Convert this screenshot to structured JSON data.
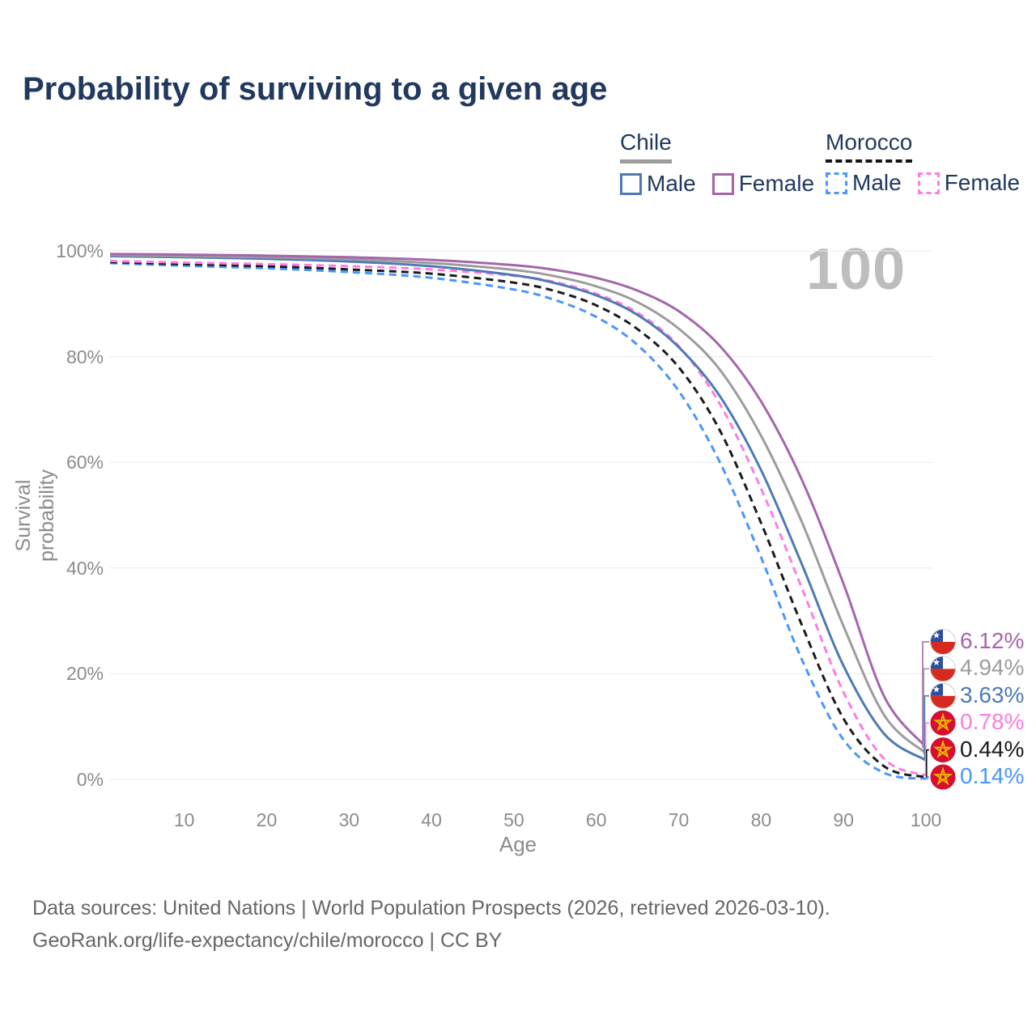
{
  "title": "Probability of surviving to a given age",
  "watermark": "100",
  "legend": {
    "groups": [
      {
        "label": "Chile",
        "line_style": "solid",
        "underline_color": "#9c9c9c",
        "items": [
          {
            "label": "Male",
            "color": "#4d7ab5",
            "dashed": false
          },
          {
            "label": "Female",
            "color": "#a565ab",
            "dashed": false
          }
        ]
      },
      {
        "label": "Morocco",
        "line_style": "dashed",
        "underline_color": "#141414",
        "items": [
          {
            "label": "Male",
            "color": "#4896ff",
            "dashed": true
          },
          {
            "label": "Female",
            "color": "#ff7ce0",
            "dashed": true
          }
        ]
      }
    ]
  },
  "chart_data": {
    "type": "line",
    "title": "Probability of surviving to a given age",
    "xlabel": "Age",
    "ylabel": "Survival probability",
    "xlim": [
      1,
      100
    ],
    "ylim": [
      0,
      100
    ],
    "grid": "horizontal",
    "legend_position": "top-right",
    "x_ticks": [
      {
        "value": 10,
        "label": "10"
      },
      {
        "value": 20,
        "label": "20"
      },
      {
        "value": 30,
        "label": "30"
      },
      {
        "value": 40,
        "label": "40"
      },
      {
        "value": 50,
        "label": "50"
      },
      {
        "value": 60,
        "label": "60"
      },
      {
        "value": 70,
        "label": "70"
      },
      {
        "value": 80,
        "label": "80"
      },
      {
        "value": 90,
        "label": "90"
      },
      {
        "value": 100,
        "label": "100"
      }
    ],
    "y_ticks": [
      {
        "value": 0,
        "label": "0%"
      },
      {
        "value": 20,
        "label": "20%"
      },
      {
        "value": 40,
        "label": "40%"
      },
      {
        "value": 60,
        "label": "60%"
      },
      {
        "value": 80,
        "label": "80%"
      },
      {
        "value": 100,
        "label": "100%"
      }
    ],
    "x": [
      1,
      10,
      20,
      30,
      40,
      50,
      55,
      60,
      65,
      70,
      75,
      80,
      85,
      90,
      95,
      100
    ],
    "series": [
      {
        "id": "chile-female",
        "country": "Chile",
        "sex": "Female",
        "color": "#a565ab",
        "dashed": false,
        "flag": "chile",
        "end_label": "6.12%",
        "values": [
          99.4,
          99.3,
          99.1,
          98.8,
          98.3,
          97.3,
          96.4,
          94.9,
          92.5,
          88.6,
          82.0,
          71.5,
          56.5,
          37.0,
          15.5,
          6.12
        ]
      },
      {
        "id": "chile-combined",
        "country": "Chile",
        "color": "#9c9c9c",
        "dashed": false,
        "flag": "chile",
        "end_label": "4.94%",
        "values": [
          99.2,
          99.0,
          98.8,
          98.4,
          97.7,
          96.4,
          95.2,
          93.3,
          90.3,
          85.3,
          77.5,
          65.0,
          48.5,
          29.0,
          12.0,
          4.94
        ]
      },
      {
        "id": "chile-male",
        "country": "Chile",
        "sex": "Male",
        "color": "#4d7ab5",
        "dashed": false,
        "flag": "chile",
        "end_label": "3.63%",
        "values": [
          99.0,
          98.8,
          98.5,
          98.0,
          97.1,
          95.4,
          93.9,
          91.6,
          87.9,
          81.8,
          72.5,
          58.5,
          40.5,
          21.5,
          8.5,
          3.63
        ]
      },
      {
        "id": "morocco-female",
        "country": "Morocco",
        "sex": "Female",
        "color": "#ff7ce0",
        "dashed": true,
        "flag": "morocco",
        "end_label": "0.78%",
        "values": [
          98.1,
          97.8,
          97.5,
          97.1,
          96.5,
          95.3,
          94.1,
          91.9,
          88.3,
          82.0,
          71.0,
          55.0,
          36.0,
          16.5,
          3.8,
          0.78
        ]
      },
      {
        "id": "morocco-combined",
        "country": "Morocco",
        "color": "#1a1a1a",
        "dashed": true,
        "flag": "morocco",
        "end_label": "0.44%",
        "values": [
          97.9,
          97.5,
          97.1,
          96.5,
          95.7,
          94.0,
          92.4,
          89.7,
          85.2,
          78.0,
          66.0,
          48.5,
          29.0,
          11.5,
          2.4,
          0.44
        ]
      },
      {
        "id": "morocco-male",
        "country": "Morocco",
        "sex": "Male",
        "color": "#4896ff",
        "dashed": true,
        "flag": "morocco",
        "end_label": "0.14%",
        "values": [
          97.7,
          97.2,
          96.7,
          96.0,
          94.9,
          92.7,
          90.7,
          87.5,
          82.2,
          73.5,
          60.0,
          42.0,
          22.5,
          7.5,
          1.2,
          0.14
        ]
      }
    ],
    "flag_colors": {
      "chile_blue": "#2a4fa2",
      "chile_red": "#d52b1e",
      "chile_white": "#ffffff",
      "morocco_red": "#d50f2d",
      "morocco_star": "#f0b400"
    }
  },
  "footer": {
    "line1": "Data sources: United Nations | World Population Prospects (2026, retrieved 2026-03-10).",
    "line2": "GeoRank.org/life-expectancy/chile/morocco | CC BY"
  }
}
